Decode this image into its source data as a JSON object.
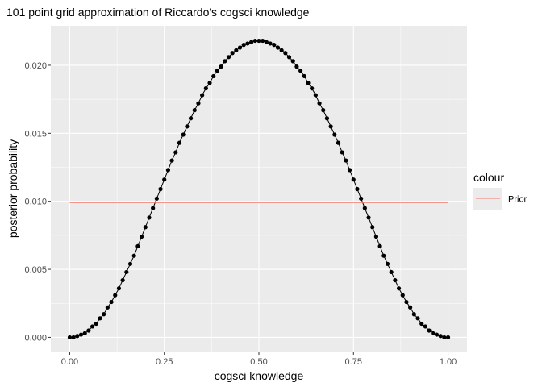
{
  "chart_data": {
    "type": "line",
    "title": "101 point grid approximation of Riccardo's cogsci knowledge",
    "xlabel": "cogsci knowledge",
    "ylabel": "posterior probability",
    "xlim": [
      -0.05,
      1.05
    ],
    "ylim": [
      -0.0011,
      0.0229
    ],
    "x_ticks": [
      0,
      0.25,
      0.5,
      0.75,
      1
    ],
    "x_tick_labels": [
      "0.00",
      "0.25",
      "0.50",
      "0.75",
      "1.00"
    ],
    "y_ticks": [
      0,
      0.005,
      0.01,
      0.015,
      0.02
    ],
    "y_tick_labels": [
      "0.000",
      "0.005",
      "0.010",
      "0.015",
      "0.020"
    ],
    "grid": true,
    "legend": {
      "title": "colour",
      "position": "right",
      "entries": [
        "Prior"
      ]
    },
    "series": [
      {
        "style": "line+points",
        "color": "#000000",
        "grid_points": 101,
        "x_start": 0,
        "x_end": 1,
        "values": [
          0.0,
          0.0,
          0.0001,
          0.0002,
          0.0003,
          0.0005,
          0.0008,
          0.001,
          0.0014,
          0.0017,
          0.0022,
          0.0026,
          0.0031,
          0.0036,
          0.0042,
          0.0048,
          0.0054,
          0.006,
          0.0067,
          0.0074,
          0.0081,
          0.0088,
          0.0095,
          0.0102,
          0.0109,
          0.0116,
          0.0123,
          0.013,
          0.0136,
          0.0143,
          0.0149,
          0.0155,
          0.0161,
          0.0167,
          0.0172,
          0.0178,
          0.0183,
          0.0187,
          0.0192,
          0.0196,
          0.0199,
          0.0203,
          0.0206,
          0.0209,
          0.0211,
          0.0213,
          0.0215,
          0.0216,
          0.0217,
          0.0218,
          0.0218,
          0.0218,
          0.0217,
          0.0216,
          0.0215,
          0.0213,
          0.0211,
          0.0209,
          0.0206,
          0.0203,
          0.0199,
          0.0196,
          0.0192,
          0.0187,
          0.0183,
          0.0178,
          0.0172,
          0.0167,
          0.0161,
          0.0155,
          0.0149,
          0.0143,
          0.0136,
          0.013,
          0.0123,
          0.0116,
          0.0109,
          0.0102,
          0.0095,
          0.0088,
          0.0081,
          0.0074,
          0.0067,
          0.006,
          0.0054,
          0.0048,
          0.0042,
          0.0036,
          0.0031,
          0.0026,
          0.0022,
          0.0017,
          0.0014,
          0.001,
          0.0008,
          0.0005,
          0.0003,
          0.0002,
          0.0001,
          0.0,
          0.0
        ]
      },
      {
        "name": "Prior",
        "style": "line",
        "color": "#F8766D",
        "x": [
          0,
          1
        ],
        "y": [
          0.0099,
          0.0099
        ]
      }
    ]
  }
}
